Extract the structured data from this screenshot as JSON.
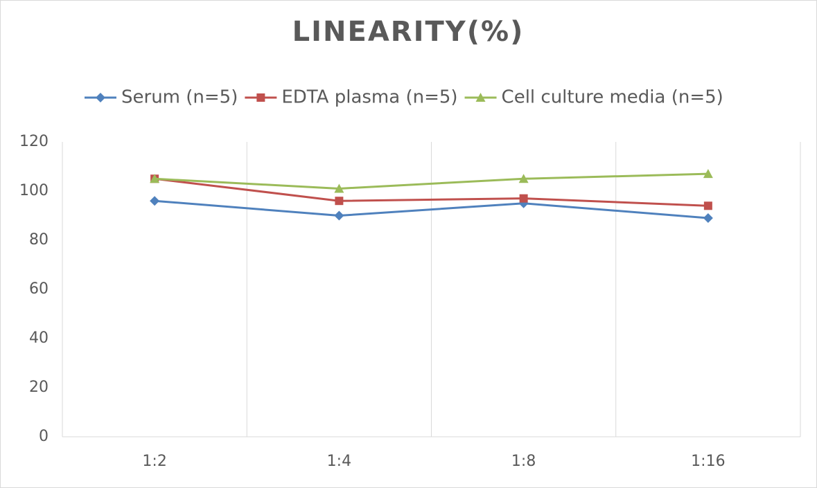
{
  "chart_data": {
    "type": "line",
    "title": "LINEARITY(%)",
    "categories": [
      "1:2",
      "1:4",
      "1:8",
      "1:16"
    ],
    "series": [
      {
        "name": "Serum (n=5)",
        "color": "#4f81bd",
        "marker": "diamond",
        "values": [
          96,
          90,
          95,
          89
        ]
      },
      {
        "name": "EDTA plasma (n=5)",
        "color": "#c0504d",
        "marker": "square",
        "values": [
          105,
          96,
          97,
          94
        ]
      },
      {
        "name": "Cell culture media (n=5)",
        "color": "#9bbb59",
        "marker": "triangle",
        "values": [
          105,
          101,
          105,
          107
        ]
      }
    ],
    "ylim": [
      0,
      120
    ],
    "yticks": [
      0,
      20,
      40,
      60,
      80,
      100,
      120
    ],
    "legend": "top"
  }
}
